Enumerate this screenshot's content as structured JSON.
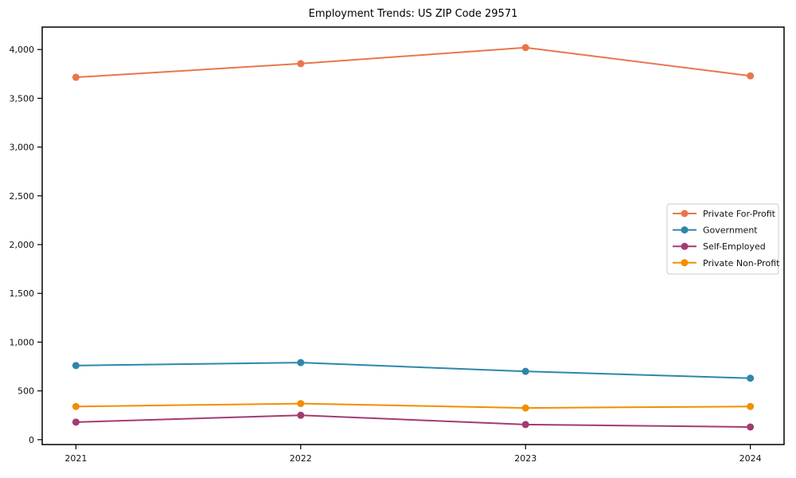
{
  "title": "Employment Trends: US ZIP Code 29571",
  "chart_data": {
    "type": "line",
    "title": "Employment Trends: US ZIP Code 29571",
    "xlabel": "",
    "ylabel": "",
    "x": [
      2021,
      2022,
      2023,
      2024
    ],
    "xtick_labels": [
      "2021",
      "2022",
      "2023",
      "2024"
    ],
    "yticks": [
      0,
      500,
      1000,
      1500,
      2000,
      2500,
      3000,
      3500,
      4000
    ],
    "ytick_labels": [
      "0",
      "500",
      "1,000",
      "1,500",
      "2,000",
      "2,500",
      "3,000",
      "3,500",
      "4,000"
    ],
    "xlim": [
      2020.85,
      2024.15
    ],
    "ylim": [
      -50,
      4230
    ],
    "grid": false,
    "legend_position": "center right",
    "series": [
      {
        "name": "Private For-Profit",
        "color": "#E8764B",
        "values": [
          3715,
          3855,
          4020,
          3730
        ]
      },
      {
        "name": "Government",
        "color": "#2E86AB",
        "values": [
          760,
          790,
          700,
          630
        ]
      },
      {
        "name": "Self-Employed",
        "color": "#A23B72",
        "values": [
          180,
          250,
          155,
          130
        ]
      },
      {
        "name": "Private Non-Profit",
        "color": "#F18F01",
        "values": [
          340,
          370,
          325,
          340
        ]
      }
    ],
    "axis_color": "#000000",
    "legend_border_color": "#cccccc",
    "legend_background": "#ffffff"
  }
}
